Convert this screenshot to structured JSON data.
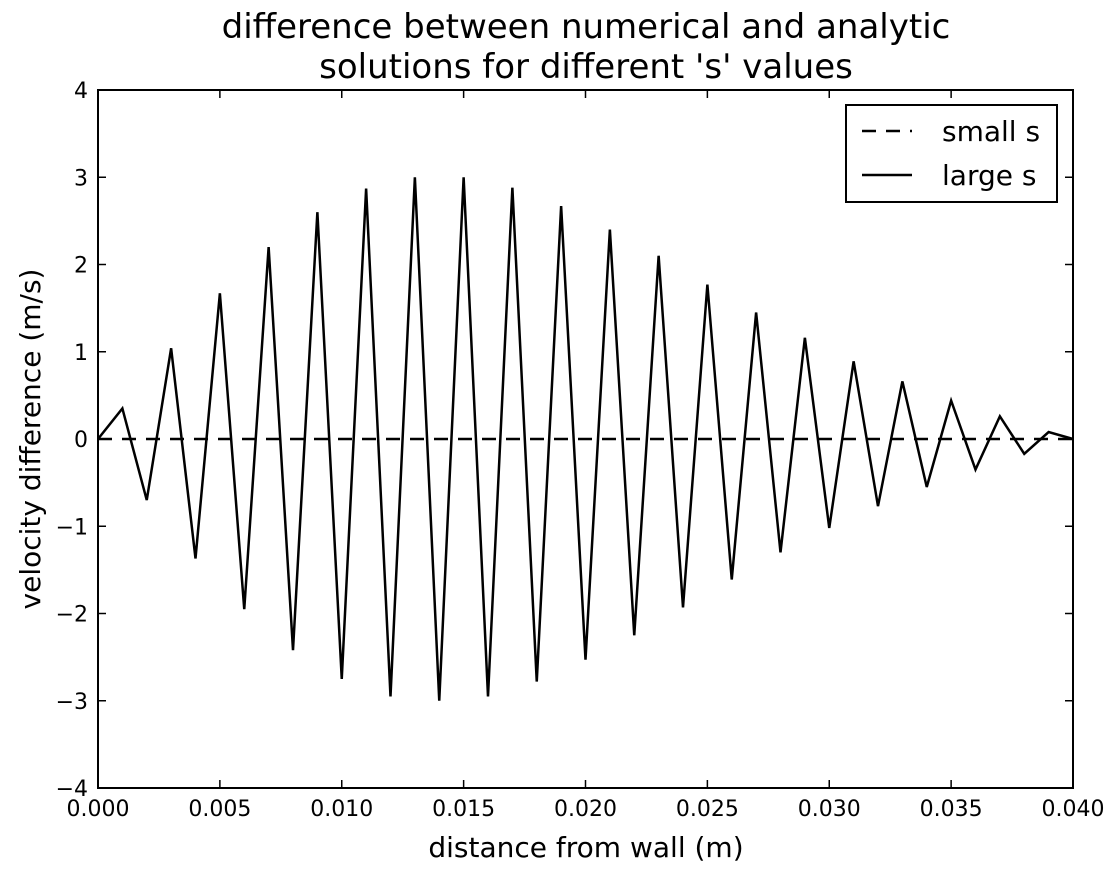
{
  "chart_data": {
    "type": "line",
    "title_lines": [
      "difference between numerical and analytic",
      "solutions for different 's' values"
    ],
    "xlabel": "distance from wall (m)",
    "ylabel": "velocity difference (m/s)",
    "xlim": [
      0.0,
      0.04
    ],
    "ylim": [
      -4,
      4
    ],
    "x_ticks": [
      "0.000",
      "0.005",
      "0.010",
      "0.015",
      "0.020",
      "0.025",
      "0.030",
      "0.035",
      "0.040"
    ],
    "y_ticks": [
      "−4",
      "−3",
      "−2",
      "−1",
      "0",
      "1",
      "2",
      "3",
      "4"
    ],
    "grid": false,
    "legend_position": "top-right",
    "series": [
      {
        "name": "small s",
        "style": "dashed",
        "color": "#000000",
        "x": [
          0.0,
          0.04
        ],
        "y": [
          0.0,
          0.0
        ]
      },
      {
        "name": "large s",
        "style": "solid",
        "color": "#000000",
        "x": [
          0.0,
          0.001,
          0.002,
          0.003,
          0.004,
          0.005,
          0.006,
          0.007,
          0.008,
          0.009,
          0.01,
          0.011,
          0.012,
          0.013,
          0.014,
          0.015,
          0.016,
          0.017,
          0.018,
          0.019,
          0.02,
          0.021,
          0.022,
          0.023,
          0.024,
          0.025,
          0.026,
          0.027,
          0.028,
          0.029,
          0.03,
          0.031,
          0.032,
          0.033,
          0.034,
          0.035,
          0.036,
          0.037,
          0.038,
          0.039,
          0.04
        ],
        "y": [
          0.0,
          0.35,
          -0.7,
          1.04,
          -1.37,
          1.67,
          -1.95,
          2.2,
          -2.42,
          2.6,
          -2.75,
          2.87,
          -2.95,
          3.0,
          -3.0,
          3.0,
          -2.95,
          2.88,
          -2.78,
          2.67,
          -2.53,
          2.4,
          -2.25,
          2.1,
          -1.93,
          1.77,
          -1.61,
          1.45,
          -1.3,
          1.16,
          -1.02,
          0.89,
          -0.77,
          0.66,
          -0.55,
          0.44,
          -0.35,
          0.26,
          -0.17,
          0.08,
          0.0
        ]
      }
    ]
  }
}
